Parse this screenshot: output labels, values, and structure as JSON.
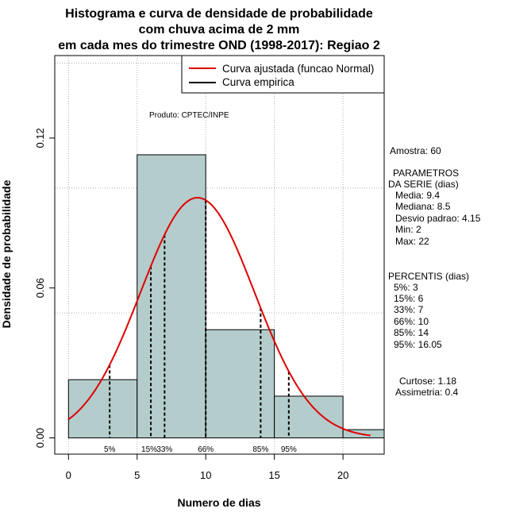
{
  "chart_data": {
    "type": "histogram",
    "title_lines": [
      "Histograma e curva de densidade de probabilidade",
      "com chuva acima de 2 mm",
      "em cada mes do trimestre OND (1998-2017): Regiao 2"
    ],
    "xlabel": "Numero de dias",
    "ylabel": "Densidade de probabilidade",
    "xlim": [
      -1,
      23
    ],
    "ylim": [
      -0.0065,
      0.153
    ],
    "x_ticks": [
      0,
      5,
      10,
      15,
      20
    ],
    "x_tick_labels": [
      "0",
      "5",
      "10",
      "15",
      "20"
    ],
    "y_ticks": [
      0.0,
      0.06,
      0.12
    ],
    "y_tick_labels": [
      "0.00",
      "0.06",
      "0.12"
    ],
    "grid": true,
    "grid_x": [
      0,
      5,
      10,
      15,
      20
    ],
    "grid_y": [
      0.05,
      0.1,
      0.15
    ],
    "bins": [
      {
        "start": 0,
        "end": 5,
        "density": 0.0233
      },
      {
        "start": 5,
        "end": 10,
        "density": 0.1133
      },
      {
        "start": 10,
        "end": 15,
        "density": 0.0433
      },
      {
        "start": 15,
        "end": 20,
        "density": 0.0167
      },
      {
        "start": 20,
        "end": 25,
        "density": 0.0033
      }
    ],
    "bar_color": "#b4cccc",
    "normal_fit": {
      "mean": 9.4,
      "sd": 4.15,
      "x_from": 0,
      "x_to": 22,
      "color": "#e00000"
    },
    "percentiles": [
      {
        "label": "5%",
        "x": 3
      },
      {
        "label": "15%",
        "x": 6
      },
      {
        "label": "33%",
        "x": 7
      },
      {
        "label": "66%",
        "x": 10
      },
      {
        "label": "85%",
        "x": 14
      },
      {
        "label": "95%",
        "x": 16.05
      }
    ],
    "legend": {
      "position": "top-right",
      "entries": [
        {
          "label": "Curva ajustada (funcao Normal)",
          "color": "#e00000"
        },
        {
          "label": "Curva empirica",
          "color": "#000000"
        }
      ]
    },
    "credit": "Produto: CPTEC/INPE"
  },
  "stats": {
    "sample": "Amostra: 60",
    "params_header_1": "PARAMETROS",
    "params_header_2": "DA SERIE (dias)",
    "params": [
      "Media: 9.4",
      "Mediana: 8.5",
      "Desvio padrao: 4.15",
      "Min: 2",
      "Max: 22"
    ],
    "pct_header": "PERCENTIS (dias)",
    "pct_list": [
      "5%: 3",
      "15%: 6",
      "33%: 7",
      "66%: 10",
      "85%: 14",
      "95%: 16.05"
    ],
    "kurtosis": "Curtose: 1.18",
    "skewness": "Assimetria: 0.4"
  }
}
